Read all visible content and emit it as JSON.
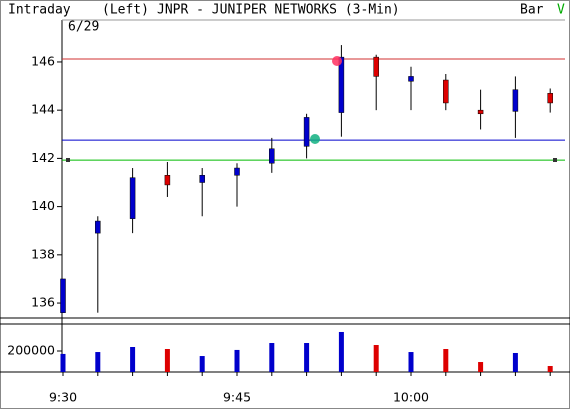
{
  "chart_data": [
    {
      "type": "candlestick",
      "mode": "Intraday",
      "side": "(Left)",
      "title": "JNPR - JUNIPER NETWORKS (3-Min)",
      "style": "Bar",
      "flag": "V",
      "date": "6/29",
      "categories": [
        "9:30",
        null,
        null,
        null,
        null,
        "9:45",
        null,
        null,
        null,
        null,
        "10:00",
        null,
        null,
        null,
        null
      ],
      "open": [
        135.6,
        138.9,
        139.5,
        141.3,
        141.0,
        141.3,
        141.8,
        142.5,
        143.9,
        146.2,
        145.2,
        145.25,
        144.0,
        143.95,
        144.7
      ],
      "high": [
        137.0,
        139.6,
        141.6,
        141.85,
        141.6,
        141.8,
        142.85,
        143.85,
        146.7,
        146.3,
        145.8,
        145.5,
        144.85,
        145.4,
        144.9
      ],
      "low": [
        135.6,
        135.6,
        138.9,
        140.4,
        139.6,
        140.0,
        141.4,
        142.0,
        142.9,
        144.0,
        144.0,
        144.0,
        143.2,
        142.85,
        143.9
      ],
      "close": [
        137.0,
        139.4,
        141.2,
        140.9,
        141.3,
        141.6,
        142.4,
        143.7,
        146.2,
        145.4,
        145.4,
        144.3,
        143.85,
        144.85,
        144.3
      ],
      "up_color": "#0000cc",
      "down_color": "#dd0000",
      "hlines": [
        {
          "value": 146.12,
          "color": "#d03030"
        },
        {
          "value": 142.76,
          "color": "#0000cc"
        },
        {
          "value": 141.93,
          "color": "#00bb00"
        }
      ],
      "ylim": [
        135.38,
        147.74
      ],
      "yticks": [
        136,
        138,
        140,
        142,
        144,
        146
      ]
    },
    {
      "type": "bar",
      "values": [
        172000,
        190000,
        238000,
        219000,
        152000,
        210000,
        276000,
        276000,
        381000,
        257000,
        190000,
        219000,
        95000,
        181000,
        57000
      ],
      "colors": [
        "#0000cc",
        "#0000cc",
        "#0000cc",
        "#dd0000",
        "#0000cc",
        "#0000cc",
        "#0000cc",
        "#0000cc",
        "#0000cc",
        "#dd0000",
        "#0000cc",
        "#dd0000",
        "#dd0000",
        "#0000cc",
        "#dd0000"
      ],
      "ylim": [
        0,
        457000
      ],
      "yticks": [
        200000
      ]
    }
  ]
}
